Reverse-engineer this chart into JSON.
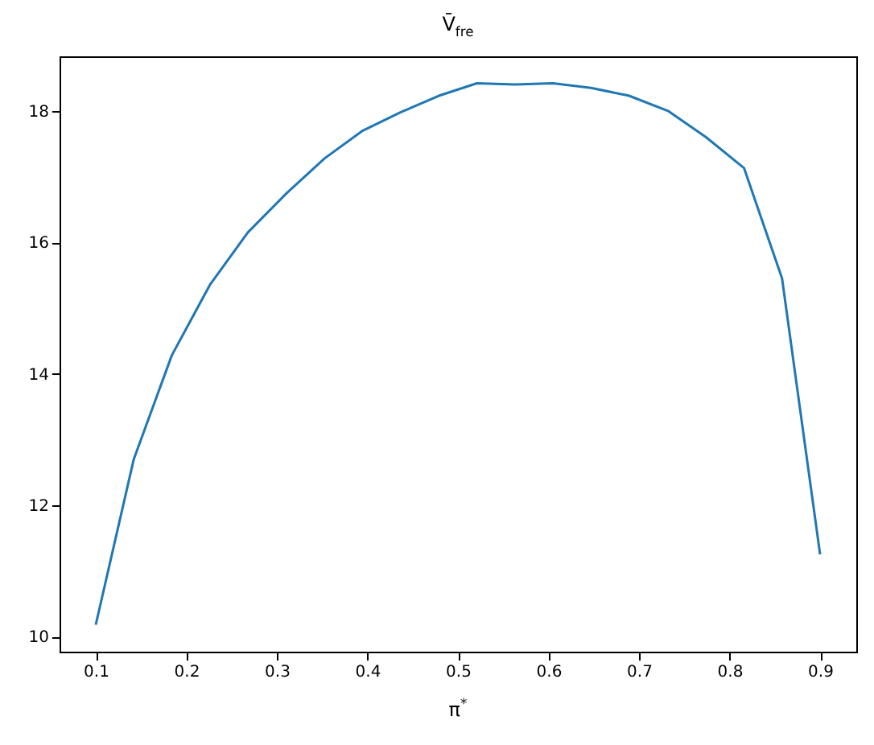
{
  "chart_data": {
    "type": "line",
    "title": "V̄$_{fre}$",
    "xlabel": "π$^{*}$",
    "x": [
      0.1,
      0.142,
      0.184,
      0.226,
      0.268,
      0.311,
      0.353,
      0.395,
      0.437,
      0.479,
      0.521,
      0.563,
      0.605,
      0.647,
      0.689,
      0.732,
      0.774,
      0.816,
      0.858,
      0.9
    ],
    "series": [
      {
        "color": "#1f77b4",
        "values": [
          10.18,
          12.7,
          14.28,
          15.35,
          16.15,
          16.75,
          17.28,
          17.7,
          17.98,
          18.23,
          18.42,
          18.4,
          18.42,
          18.35,
          18.23,
          18.0,
          17.6,
          17.13,
          15.45,
          11.25
        ]
      }
    ],
    "xlim": [
      0.06,
      0.94
    ],
    "ylim": [
      9.77,
      18.83
    ],
    "xticks": [
      0.1,
      0.2,
      0.3,
      0.4,
      0.5,
      0.6,
      0.7,
      0.8,
      0.9
    ],
    "yticks": [
      10,
      12,
      14,
      16,
      18
    ],
    "grid": false,
    "marker": "none",
    "line_style": "solid"
  }
}
